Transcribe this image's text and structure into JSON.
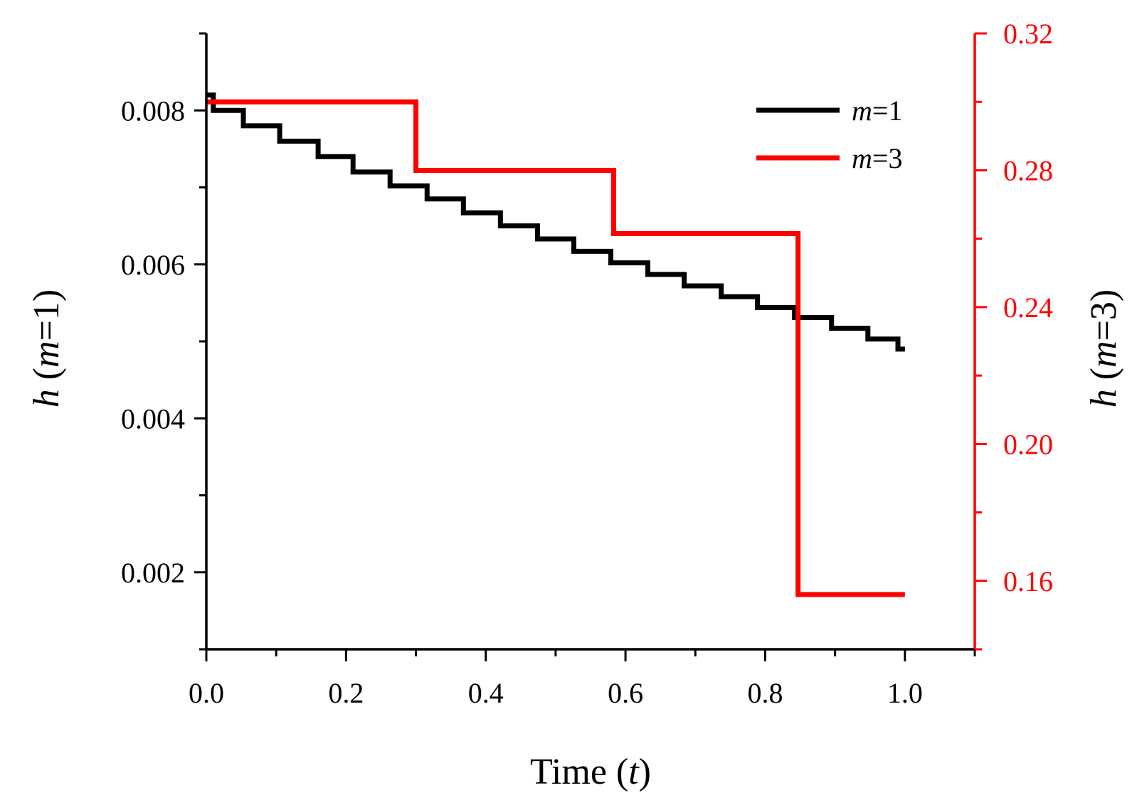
{
  "chart_data": {
    "type": "line",
    "step": true,
    "x": {
      "label_parts": [
        "Time (",
        "t",
        ")"
      ],
      "range": [
        0,
        1.1
      ],
      "major_ticks": [
        0.0,
        0.2,
        0.4,
        0.6,
        0.8,
        1.0
      ],
      "tick_labels": [
        "0.0",
        "0.2",
        "0.4",
        "0.6",
        "0.8",
        "1.0"
      ],
      "minor_ticks": [
        0.1,
        0.3,
        0.5,
        0.7,
        0.9,
        1.1
      ]
    },
    "y_left": {
      "label_parts": [
        "h",
        " (",
        "m",
        "=1)"
      ],
      "range": [
        0.001,
        0.009
      ],
      "major_ticks": [
        0.002,
        0.004,
        0.006,
        0.008
      ],
      "tick_labels": [
        "0.002",
        "0.004",
        "0.006",
        "0.008"
      ],
      "minor_ticks": [
        0.001,
        0.003,
        0.005,
        0.007,
        0.009
      ],
      "color": "#000000"
    },
    "y_right": {
      "label_parts": [
        "h",
        " (",
        "m",
        "=3)"
      ],
      "range": [
        0.14,
        0.32
      ],
      "major_ticks": [
        0.16,
        0.2,
        0.24,
        0.28,
        0.32
      ],
      "tick_labels": [
        "0.16",
        "0.20",
        "0.24",
        "0.28",
        "0.32"
      ],
      "minor_ticks": [
        0.14,
        0.18,
        0.22,
        0.26,
        0.3
      ],
      "color": "#ff0000"
    },
    "legend": {
      "position": "top-right"
    },
    "series": [
      {
        "name_parts": [
          "m",
          "=1"
        ],
        "axis": "left",
        "color": "#000000",
        "steps": [
          [
            0.0,
            0.0082
          ],
          [
            0.01,
            0.008
          ],
          [
            0.053,
            0.0078
          ],
          [
            0.105,
            0.0076
          ],
          [
            0.16,
            0.0074
          ],
          [
            0.21,
            0.0072
          ],
          [
            0.263,
            0.00702
          ],
          [
            0.316,
            0.00685
          ],
          [
            0.368,
            0.00667
          ],
          [
            0.421,
            0.0065
          ],
          [
            0.474,
            0.00633
          ],
          [
            0.526,
            0.00617
          ],
          [
            0.579,
            0.00602
          ],
          [
            0.632,
            0.00587
          ],
          [
            0.684,
            0.00572
          ],
          [
            0.737,
            0.00558
          ],
          [
            0.789,
            0.00544
          ],
          [
            0.842,
            0.00531
          ],
          [
            0.895,
            0.00517
          ],
          [
            0.947,
            0.00503
          ],
          [
            0.99,
            0.0049
          ]
        ],
        "x_end": 1.0
      },
      {
        "name_parts": [
          "m",
          "=3"
        ],
        "axis": "right",
        "color": "#ff0000",
        "steps": [
          [
            0.0,
            0.3
          ],
          [
            0.3,
            0.28
          ],
          [
            0.583,
            0.2615
          ],
          [
            0.847,
            0.156
          ]
        ],
        "x_end": 1.0
      }
    ]
  }
}
